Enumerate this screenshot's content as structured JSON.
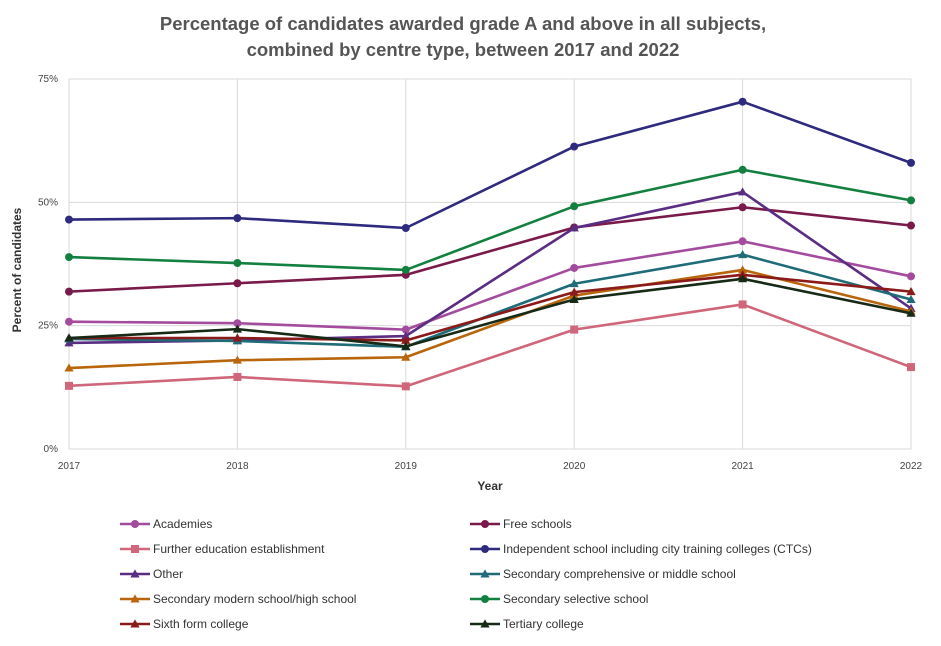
{
  "chart_data": {
    "type": "line",
    "title_lines": [
      "Percentage of candidates awarded grade A and above in all subjects,",
      "combined by centre type, between 2017 and 2022"
    ],
    "xlabel": "Year",
    "ylabel": "Percent of candidates",
    "x": [
      "2017",
      "2018",
      "2019",
      "2020",
      "2021",
      "2022"
    ],
    "y_ticks": [
      {
        "value": 0,
        "label": "0%"
      },
      {
        "value": 25,
        "label": "25%"
      },
      {
        "value": 50,
        "label": "50%"
      },
      {
        "value": 75,
        "label": "75%"
      }
    ],
    "ylim": [
      0,
      75
    ],
    "grid": true,
    "series": [
      {
        "name": "Academies",
        "color": "#a34c9e",
        "marker": "circle",
        "values": [
          25.8,
          25.5,
          24.2,
          36.7,
          42.1,
          35.0
        ]
      },
      {
        "name": "Free schools",
        "color": "#7a1a4a",
        "marker": "circle",
        "values": [
          31.9,
          33.6,
          35.3,
          44.9,
          49.0,
          45.3
        ]
      },
      {
        "name": "Further education establishment",
        "color": "#cf6679",
        "marker": "square",
        "values": [
          12.8,
          14.6,
          12.7,
          24.2,
          29.3,
          16.6
        ]
      },
      {
        "name": "Independent school including city training colleges (CTCs)",
        "color": "#2e2a7e",
        "marker": "circle",
        "values": [
          46.5,
          46.8,
          44.8,
          61.3,
          70.4,
          58.0
        ]
      },
      {
        "name": "Other",
        "color": "#5a2d82",
        "marker": "triangle",
        "values": [
          21.5,
          22.0,
          22.9,
          44.8,
          52.1,
          28.5
        ]
      },
      {
        "name": "Secondary comprehensive or middle school",
        "color": "#1f6b78",
        "marker": "triangle",
        "values": [
          22.3,
          21.9,
          20.7,
          33.5,
          39.4,
          30.3
        ]
      },
      {
        "name": "Secondary modern school/high school",
        "color": "#b8650c",
        "marker": "triangle",
        "values": [
          16.4,
          18.0,
          18.6,
          31.1,
          36.3,
          27.9
        ]
      },
      {
        "name": "Secondary selective school",
        "color": "#138040",
        "marker": "circle",
        "values": [
          38.9,
          37.7,
          36.3,
          49.2,
          56.6,
          50.4
        ]
      },
      {
        "name": "Sixth form college",
        "color": "#8b1a1a",
        "marker": "triangle",
        "values": [
          22.5,
          22.5,
          22.0,
          31.8,
          35.3,
          31.9
        ]
      },
      {
        "name": "Tertiary college",
        "color": "#162a16",
        "marker": "triangle",
        "values": [
          22.5,
          24.3,
          20.8,
          30.3,
          34.5,
          27.5
        ]
      }
    ]
  }
}
